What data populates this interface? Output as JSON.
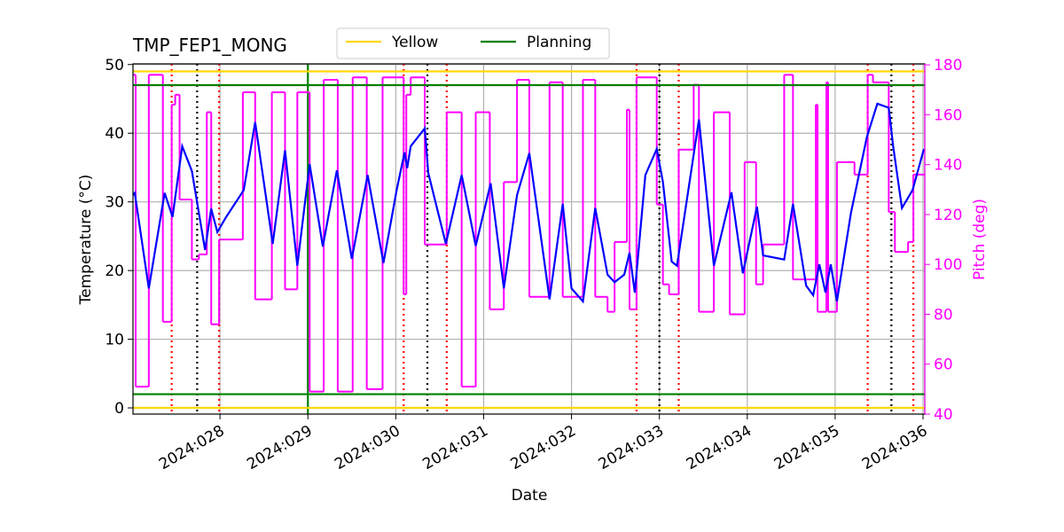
{
  "chart_data": {
    "type": "line",
    "title": "TMP_FEP1_MONG",
    "xlabel": "Date",
    "ylabel": "Temperature (°C)",
    "y2label": "Pitch (deg)",
    "xlim": [
      27.01,
      36.02
    ],
    "xticks": [
      {
        "value": 28,
        "label": "2024:028"
      },
      {
        "value": 29,
        "label": "2024:029"
      },
      {
        "value": 30,
        "label": "2024:030"
      },
      {
        "value": 31,
        "label": "2024:031"
      },
      {
        "value": 32,
        "label": "2024:032"
      },
      {
        "value": 33,
        "label": "2024:033"
      },
      {
        "value": 34,
        "label": "2024:034"
      },
      {
        "value": 35,
        "label": "2024:035"
      },
      {
        "value": 36,
        "label": "2024:036"
      }
    ],
    "ylim": [
      -0.9,
      50.1
    ],
    "yticks": [
      0,
      10,
      20,
      30,
      40,
      50
    ],
    "y2lim": [
      40,
      180.4
    ],
    "y2ticks": [
      40,
      60,
      80,
      100,
      120,
      140,
      160,
      180
    ],
    "grid": true,
    "legend": "upper center",
    "y2color": "#ff00ff",
    "series": [
      {
        "color": "#0000ff",
        "step": false,
        "x": [
          27.01,
          27.03,
          27.19,
          27.37,
          27.46,
          27.57,
          27.68,
          27.83,
          27.9,
          27.97,
          28.07,
          28.27,
          28.4,
          28.6,
          28.74,
          28.88,
          29.02,
          29.17,
          29.33,
          29.5,
          29.68,
          29.86,
          30.01,
          30.1,
          30.13,
          30.17,
          30.33,
          30.37,
          30.57,
          30.75,
          30.91,
          31.08,
          31.23,
          31.38,
          31.52,
          31.75,
          31.9,
          32.0,
          32.13,
          32.27,
          32.41,
          32.49,
          32.6,
          32.66,
          32.72,
          32.84,
          32.97,
          33.04,
          33.14,
          33.2,
          33.45,
          33.62,
          33.82,
          33.95,
          34.11,
          34.18,
          34.42,
          34.52,
          34.67,
          34.75,
          34.82,
          34.89,
          34.95,
          35.02,
          35.18,
          35.36,
          35.48,
          35.61,
          35.66,
          35.76,
          35.88,
          36.01
        ],
        "values": [
          31.0,
          31.3,
          17.4,
          31.3,
          27.8,
          38.1,
          34.5,
          23.0,
          29.0,
          25.6,
          27.8,
          31.7,
          41.6,
          23.9,
          37.5,
          20.7,
          35.5,
          23.5,
          34.6,
          21.7,
          33.9,
          21.1,
          31.7,
          37.2,
          34.9,
          38.1,
          40.7,
          34.2,
          23.9,
          33.9,
          23.6,
          32.7,
          17.4,
          31.0,
          37.1,
          15.8,
          29.7,
          17.4,
          15.5,
          29.1,
          19.4,
          18.3,
          19.4,
          22.6,
          16.8,
          33.9,
          37.7,
          32.9,
          21.3,
          20.7,
          42.0,
          20.7,
          31.4,
          19.6,
          29.3,
          22.2,
          21.6,
          29.7,
          17.8,
          16.4,
          20.9,
          16.8,
          20.9,
          15.5,
          28.4,
          39.4,
          44.3,
          43.7,
          38.1,
          29.1,
          31.7,
          37.7
        ]
      },
      {
        "color": "#ff00ff",
        "axis": "y2",
        "step": true,
        "x": [
          27.01,
          27.04,
          27.19,
          27.35,
          27.45,
          27.49,
          27.54,
          27.68,
          27.76,
          27.85,
          27.9,
          27.99,
          28.26,
          28.4,
          28.59,
          28.74,
          28.88,
          29.02,
          29.18,
          29.34,
          29.51,
          29.67,
          29.85,
          30.09,
          30.12,
          30.17,
          30.33,
          30.58,
          30.75,
          30.91,
          31.07,
          31.23,
          31.38,
          31.52,
          31.75,
          31.9,
          32.13,
          32.27,
          32.41,
          32.49,
          32.63,
          32.66,
          32.74,
          32.97,
          33.04,
          33.11,
          33.22,
          33.39,
          33.45,
          33.62,
          33.8,
          33.97,
          34.1,
          34.18,
          34.42,
          34.52,
          34.78,
          34.8,
          34.9,
          34.92,
          35.02,
          35.22,
          35.37,
          35.43,
          35.61,
          35.68,
          35.83,
          35.89
        ],
        "values": [
          176,
          51,
          176,
          77,
          164,
          168,
          126,
          102,
          104,
          161,
          76,
          110,
          169,
          86,
          169,
          90,
          169,
          49,
          174,
          49,
          175,
          50,
          175,
          88,
          168,
          175,
          108,
          161,
          51,
          161,
          82,
          133,
          174,
          87,
          173,
          87,
          174,
          87,
          81,
          109,
          162,
          82,
          175,
          124,
          92,
          88,
          146,
          172,
          81,
          161,
          80,
          141,
          92,
          108,
          176,
          94,
          164,
          81,
          173,
          81,
          141,
          136,
          176,
          173,
          121,
          105,
          109,
          136
        ]
      }
    ],
    "hlines": [
      {
        "name": "Yellow",
        "color": "#ffd700",
        "values": [
          49,
          0
        ]
      },
      {
        "name": "Planning",
        "color": "#008000",
        "values": [
          47,
          2
        ]
      }
    ],
    "vlines": [
      {
        "color": "#008000",
        "dashed": false,
        "x": [
          29.0
        ]
      },
      {
        "color": "#ff0000",
        "dashed": true,
        "x": [
          27.45,
          27.99,
          30.09,
          30.58,
          32.74,
          33.22,
          35.37,
          35.89
        ]
      },
      {
        "color": "#000000",
        "dashed": true,
        "x": [
          27.74,
          30.36,
          33.0,
          35.64
        ]
      }
    ]
  }
}
